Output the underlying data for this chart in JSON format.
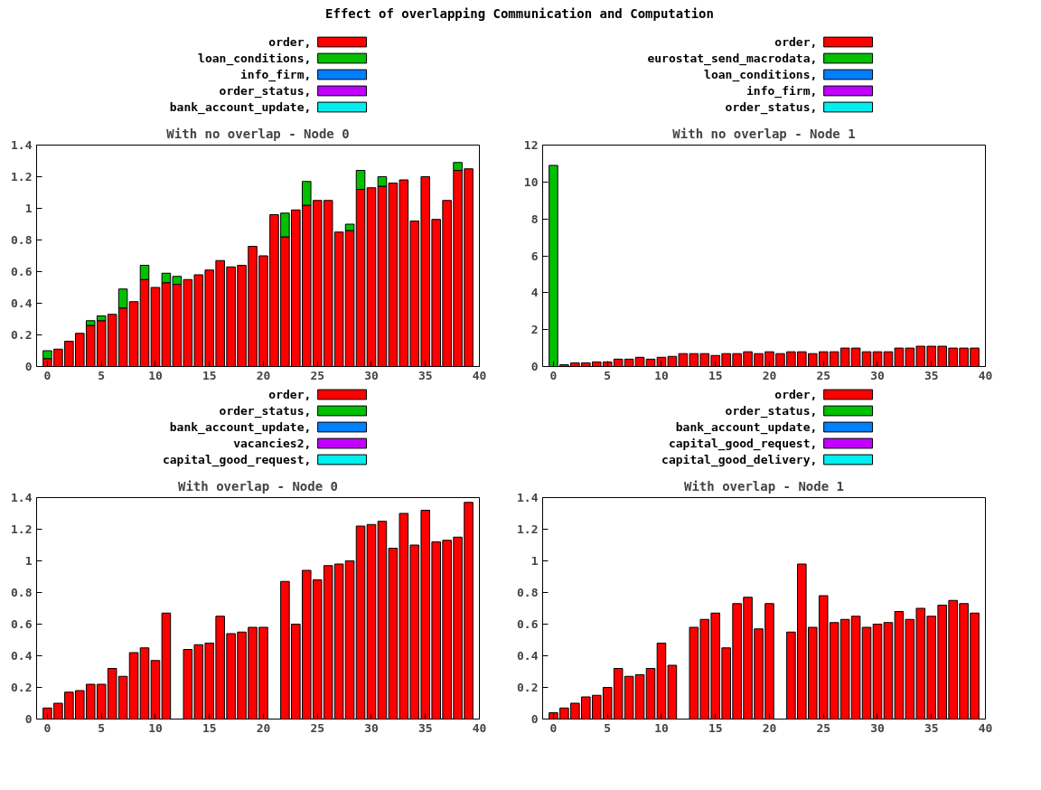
{
  "chart_data": [
    {
      "type": "bar",
      "stacked": true,
      "title": "With no overlap - Node 0",
      "annotations": [
        "Effect of overlapping Communication and Computation"
      ],
      "legend": "top",
      "grid": false,
      "x": [
        0,
        1,
        2,
        3,
        4,
        5,
        6,
        7,
        8,
        9,
        10,
        11,
        12,
        13,
        14,
        15,
        16,
        17,
        18,
        19,
        20,
        21,
        22,
        23,
        24,
        25,
        26,
        27,
        28,
        29,
        30,
        31,
        32,
        33,
        34,
        35,
        36,
        37,
        38,
        39
      ],
      "xlim": [
        -1,
        40
      ],
      "xticks": [
        0,
        5,
        10,
        15,
        20,
        25,
        30,
        35,
        40
      ],
      "ylim": [
        0,
        1.4
      ],
      "yticks": [
        0,
        0.2,
        0.4,
        0.6,
        0.8,
        1,
        1.2,
        1.4
      ],
      "series": [
        {
          "name": "order,",
          "color": "#ff0000",
          "values": [
            0.05,
            0.11,
            0.16,
            0.21,
            0.26,
            0.29,
            0.33,
            0.37,
            0.41,
            0.55,
            0.5,
            0.53,
            0.52,
            0.55,
            0.58,
            0.61,
            0.67,
            0.63,
            0.64,
            0.76,
            0.7,
            0.96,
            0.82,
            0.99,
            1.02,
            1.05,
            1.05,
            0.85,
            0.86,
            1.12,
            1.13,
            1.14,
            1.16,
            1.18,
            0.92,
            1.2,
            0.93,
            1.05,
            1.24,
            1.25
          ]
        },
        {
          "name": "loan_conditions,",
          "color": "#00c000",
          "values": [
            0.05,
            null,
            null,
            null,
            0.03,
            0.03,
            null,
            0.12,
            null,
            0.09,
            null,
            0.06,
            0.05,
            null,
            null,
            null,
            null,
            null,
            null,
            null,
            null,
            null,
            0.15,
            null,
            0.15,
            null,
            null,
            null,
            0.04,
            0.12,
            null,
            0.06,
            null,
            null,
            null,
            null,
            null,
            null,
            0.05,
            null
          ]
        },
        {
          "name": "info_firm,",
          "color": "#0080ff",
          "values": [
            null,
            null,
            null,
            null,
            null,
            null,
            null,
            null,
            null,
            null,
            null,
            null,
            null,
            null,
            null,
            null,
            null,
            null,
            null,
            null,
            null,
            null,
            null,
            null,
            null,
            null,
            null,
            null,
            null,
            null,
            null,
            null,
            null,
            null,
            null,
            null,
            null,
            null,
            null,
            null
          ]
        },
        {
          "name": "order_status,",
          "color": "#c000ff",
          "values": [
            null,
            null,
            null,
            null,
            null,
            null,
            null,
            null,
            null,
            null,
            null,
            null,
            null,
            null,
            null,
            null,
            null,
            null,
            null,
            null,
            null,
            null,
            null,
            null,
            null,
            null,
            null,
            null,
            null,
            null,
            null,
            null,
            null,
            null,
            null,
            null,
            null,
            null,
            null,
            null
          ]
        },
        {
          "name": "bank_account_update,",
          "color": "#00eeee",
          "values": [
            null,
            null,
            null,
            null,
            null,
            null,
            null,
            null,
            null,
            null,
            null,
            null,
            null,
            null,
            null,
            null,
            null,
            null,
            null,
            null,
            null,
            null,
            null,
            null,
            null,
            null,
            null,
            null,
            null,
            null,
            null,
            null,
            null,
            null,
            null,
            null,
            null,
            null,
            null,
            null
          ]
        }
      ]
    },
    {
      "type": "bar",
      "stacked": true,
      "title": "With no overlap - Node 1",
      "legend": "top",
      "grid": false,
      "x": [
        0,
        1,
        2,
        3,
        4,
        5,
        6,
        7,
        8,
        9,
        10,
        11,
        12,
        13,
        14,
        15,
        16,
        17,
        18,
        19,
        20,
        21,
        22,
        23,
        24,
        25,
        26,
        27,
        28,
        29,
        30,
        31,
        32,
        33,
        34,
        35,
        36,
        37,
        38,
        39
      ],
      "xlim": [
        -1,
        40
      ],
      "xticks": [
        0,
        5,
        10,
        15,
        20,
        25,
        30,
        35,
        40
      ],
      "ylim": [
        0,
        12
      ],
      "yticks": [
        0,
        2,
        4,
        6,
        8,
        10,
        12
      ],
      "series": [
        {
          "name": "order,",
          "color": "#ff0000",
          "values": [
            null,
            0.1,
            0.2,
            0.2,
            0.25,
            0.25,
            0.4,
            0.4,
            0.5,
            0.4,
            0.5,
            0.55,
            0.7,
            0.7,
            0.7,
            0.6,
            0.7,
            0.7,
            0.8,
            0.7,
            0.8,
            0.7,
            0.8,
            0.8,
            0.7,
            0.8,
            0.8,
            1.0,
            1.0,
            0.8,
            0.8,
            0.8,
            1.0,
            1.0,
            1.1,
            1.1,
            1.1,
            1.0,
            1.0,
            1.0
          ]
        },
        {
          "name": "eurostat_send_macrodata,",
          "color": "#00c000",
          "values": [
            10.9,
            null,
            null,
            null,
            null,
            null,
            null,
            null,
            null,
            null,
            null,
            null,
            null,
            null,
            null,
            null,
            null,
            null,
            null,
            null,
            null,
            null,
            null,
            null,
            null,
            null,
            null,
            null,
            null,
            null,
            null,
            null,
            null,
            null,
            null,
            null,
            null,
            null,
            null,
            null
          ]
        },
        {
          "name": "loan_conditions,",
          "color": "#0080ff",
          "values": [
            null,
            null,
            null,
            null,
            null,
            null,
            null,
            null,
            null,
            null,
            null,
            null,
            null,
            null,
            null,
            null,
            null,
            null,
            null,
            null,
            null,
            null,
            null,
            null,
            null,
            null,
            null,
            null,
            null,
            null,
            null,
            null,
            null,
            null,
            null,
            null,
            null,
            null,
            null,
            null
          ]
        },
        {
          "name": "info_firm,",
          "color": "#c000ff",
          "values": [
            null,
            null,
            null,
            null,
            null,
            null,
            null,
            null,
            null,
            null,
            null,
            null,
            null,
            null,
            null,
            null,
            null,
            null,
            null,
            null,
            null,
            null,
            null,
            null,
            null,
            null,
            null,
            null,
            null,
            null,
            null,
            null,
            null,
            null,
            null,
            null,
            null,
            null,
            null,
            null
          ]
        },
        {
          "name": "order_status,",
          "color": "#00eeee",
          "values": [
            null,
            null,
            null,
            null,
            null,
            null,
            null,
            null,
            null,
            null,
            null,
            null,
            null,
            null,
            null,
            null,
            null,
            null,
            null,
            null,
            null,
            null,
            null,
            null,
            null,
            null,
            null,
            null,
            null,
            null,
            null,
            null,
            null,
            null,
            null,
            null,
            null,
            null,
            null,
            null
          ]
        }
      ]
    },
    {
      "type": "bar",
      "stacked": true,
      "title": "With overlap - Node 0",
      "legend": "top",
      "grid": false,
      "x": [
        0,
        1,
        2,
        3,
        4,
        5,
        6,
        7,
        8,
        9,
        10,
        11,
        12,
        13,
        14,
        15,
        16,
        17,
        18,
        19,
        20,
        21,
        22,
        23,
        24,
        25,
        26,
        27,
        28,
        29,
        30,
        31,
        32,
        33,
        34,
        35,
        36,
        37,
        38,
        39
      ],
      "xlim": [
        -1,
        40
      ],
      "xticks": [
        0,
        5,
        10,
        15,
        20,
        25,
        30,
        35,
        40
      ],
      "ylim": [
        0,
        1.4
      ],
      "yticks": [
        0,
        0.2,
        0.4,
        0.6,
        0.8,
        1,
        1.2,
        1.4
      ],
      "series": [
        {
          "name": "order,",
          "color": "#ff0000",
          "values": [
            0.07,
            0.1,
            0.17,
            0.18,
            0.22,
            0.22,
            0.32,
            0.27,
            0.42,
            0.45,
            0.37,
            0.67,
            null,
            0.44,
            0.47,
            0.48,
            0.65,
            0.54,
            0.55,
            0.58,
            0.58,
            null,
            0.87,
            0.6,
            0.94,
            0.88,
            0.97,
            0.98,
            1.0,
            1.22,
            1.23,
            1.25,
            1.08,
            1.3,
            1.1,
            1.32,
            1.12,
            1.13,
            1.15,
            1.37
          ]
        },
        {
          "name": "order_status,",
          "color": "#00c000",
          "values": [
            null,
            null,
            null,
            null,
            null,
            null,
            null,
            null,
            null,
            null,
            null,
            null,
            null,
            null,
            null,
            null,
            null,
            null,
            null,
            null,
            null,
            null,
            null,
            null,
            null,
            null,
            null,
            null,
            null,
            null,
            null,
            null,
            null,
            null,
            null,
            null,
            null,
            null,
            null,
            null
          ]
        },
        {
          "name": "bank_account_update,",
          "color": "#0080ff",
          "values": [
            null,
            null,
            null,
            null,
            null,
            null,
            null,
            null,
            null,
            null,
            null,
            null,
            null,
            null,
            null,
            null,
            null,
            null,
            null,
            null,
            null,
            null,
            null,
            null,
            null,
            null,
            null,
            null,
            null,
            null,
            null,
            null,
            null,
            null,
            null,
            null,
            null,
            null,
            null,
            null
          ]
        },
        {
          "name": "vacancies2,",
          "color": "#c000ff",
          "values": [
            null,
            null,
            null,
            null,
            null,
            null,
            null,
            null,
            null,
            null,
            null,
            null,
            null,
            null,
            null,
            null,
            null,
            null,
            null,
            null,
            null,
            null,
            null,
            null,
            null,
            null,
            null,
            null,
            null,
            null,
            null,
            null,
            null,
            null,
            null,
            null,
            null,
            null,
            null,
            null
          ]
        },
        {
          "name": "capital_good_request,",
          "color": "#00eeee",
          "values": [
            null,
            null,
            null,
            null,
            null,
            null,
            null,
            null,
            null,
            null,
            null,
            null,
            null,
            null,
            null,
            null,
            null,
            null,
            null,
            null,
            null,
            null,
            null,
            null,
            null,
            null,
            null,
            null,
            null,
            null,
            null,
            null,
            null,
            null,
            null,
            null,
            null,
            null,
            null,
            null
          ]
        }
      ]
    },
    {
      "type": "bar",
      "stacked": true,
      "title": "With overlap - Node 1",
      "legend": "top",
      "grid": false,
      "x": [
        0,
        1,
        2,
        3,
        4,
        5,
        6,
        7,
        8,
        9,
        10,
        11,
        12,
        13,
        14,
        15,
        16,
        17,
        18,
        19,
        20,
        21,
        22,
        23,
        24,
        25,
        26,
        27,
        28,
        29,
        30,
        31,
        32,
        33,
        34,
        35,
        36,
        37,
        38,
        39
      ],
      "xlim": [
        -1,
        40
      ],
      "xticks": [
        0,
        5,
        10,
        15,
        20,
        25,
        30,
        35,
        40
      ],
      "ylim": [
        0,
        1.4
      ],
      "yticks": [
        0,
        0.2,
        0.4,
        0.6,
        0.8,
        1,
        1.2,
        1.4
      ],
      "series": [
        {
          "name": "order,",
          "color": "#ff0000",
          "values": [
            0.04,
            0.07,
            0.1,
            0.14,
            0.15,
            0.2,
            0.32,
            0.27,
            0.28,
            0.32,
            0.48,
            0.34,
            null,
            0.58,
            0.63,
            0.67,
            0.45,
            0.73,
            0.77,
            0.57,
            0.73,
            null,
            0.55,
            0.98,
            0.58,
            0.78,
            0.61,
            0.63,
            0.65,
            0.58,
            0.6,
            0.61,
            0.68,
            0.63,
            0.7,
            0.65,
            0.72,
            0.75,
            0.73,
            0.67
          ]
        },
        {
          "name": "order_status,",
          "color": "#00c000",
          "values": [
            null,
            null,
            null,
            null,
            null,
            null,
            null,
            null,
            null,
            null,
            null,
            null,
            null,
            null,
            null,
            null,
            null,
            null,
            null,
            null,
            null,
            null,
            null,
            null,
            null,
            null,
            null,
            null,
            null,
            null,
            null,
            null,
            null,
            null,
            null,
            null,
            null,
            null,
            null,
            null
          ]
        },
        {
          "name": "bank_account_update,",
          "color": "#0080ff",
          "values": [
            null,
            null,
            null,
            null,
            null,
            null,
            null,
            null,
            null,
            null,
            null,
            null,
            null,
            null,
            null,
            null,
            null,
            null,
            null,
            null,
            null,
            null,
            null,
            null,
            null,
            null,
            null,
            null,
            null,
            null,
            null,
            null,
            null,
            null,
            null,
            null,
            null,
            null,
            null,
            null
          ]
        },
        {
          "name": "capital_good_request,",
          "color": "#c000ff",
          "values": [
            null,
            null,
            null,
            null,
            null,
            null,
            null,
            null,
            null,
            null,
            null,
            null,
            null,
            null,
            null,
            null,
            null,
            null,
            null,
            null,
            null,
            null,
            null,
            null,
            null,
            null,
            null,
            null,
            null,
            null,
            null,
            null,
            null,
            null,
            null,
            null,
            null,
            null,
            null,
            null
          ]
        },
        {
          "name": "capital_good_delivery,",
          "color": "#00eeee",
          "values": [
            null,
            null,
            null,
            null,
            null,
            null,
            null,
            null,
            null,
            null,
            null,
            null,
            null,
            null,
            null,
            null,
            null,
            null,
            null,
            null,
            null,
            null,
            null,
            null,
            null,
            null,
            null,
            null,
            null,
            null,
            null,
            null,
            null,
            null,
            null,
            null,
            null,
            null,
            null,
            null
          ]
        }
      ]
    }
  ]
}
